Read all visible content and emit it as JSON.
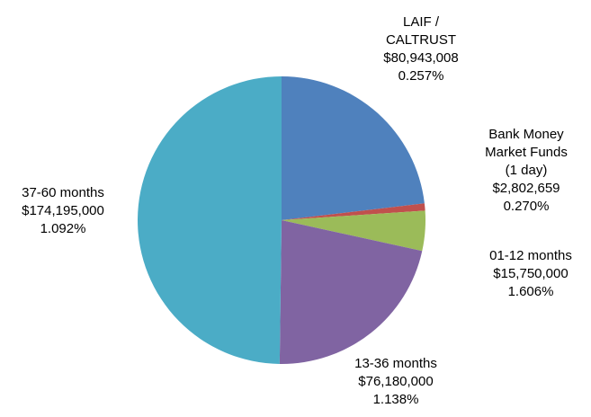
{
  "chart_data": {
    "type": "pie",
    "categories": [
      "LAIF / CALTRUST",
      "Bank Money Market Funds (1 day)",
      "01-12 months",
      "13-36 months",
      "37-60 months"
    ],
    "values": [
      80943008,
      2802659,
      15750000,
      76180000,
      174195000
    ],
    "value_labels": [
      "$80,943,008",
      "$2,802,659",
      "$15,750,000",
      "$76,180,000",
      "$174,195,000"
    ],
    "yield_labels": [
      "0.257%",
      "0.270%",
      "1.606%",
      "1.138%",
      "1.092%"
    ],
    "colors": [
      "#4f81bd",
      "#c0504d",
      "#9bbb59",
      "#8064a2",
      "#4bacc6"
    ]
  }
}
